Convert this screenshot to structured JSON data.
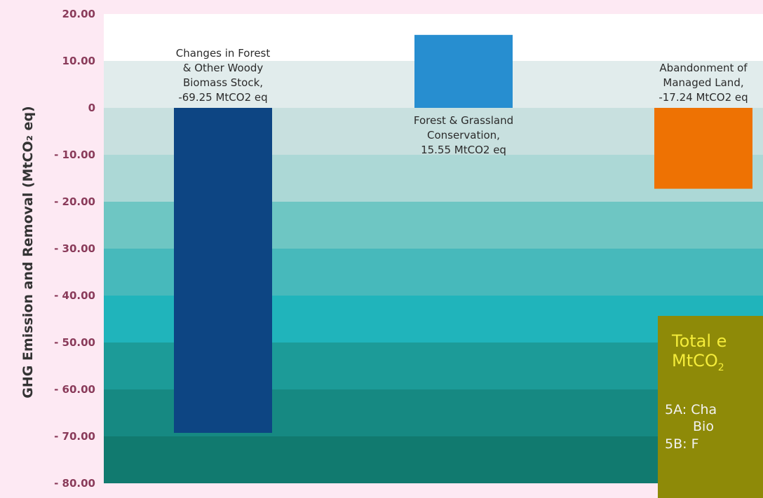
{
  "chart_data": {
    "type": "bar",
    "ylabel": "GHG Emission and Removal (MtCO₂ eq)",
    "ylim": [
      -80,
      20
    ],
    "yticks": [
      "20.00",
      "10.00",
      "0",
      "- 10.00",
      "- 20.00",
      "- 30.00",
      "- 40.00",
      "- 50.00",
      "- 60.00",
      "- 70.00",
      "- 80.00"
    ],
    "bars": [
      {
        "name": "Changes in Forest & Other Woody Biomass Stock",
        "value": -69.25,
        "color": "#0d4583",
        "label_lines": [
          "Changes in Forest",
          "& Other Woody",
          "Biomass Stock,",
          "-69.25 MtCO2 eq"
        ]
      },
      {
        "name": "Forest & Grassland Conservation",
        "value": 15.55,
        "color": "#278ed0",
        "label_lines": [
          "Forest & Grassland",
          "Conservation,",
          "15.55 MtCO2 eq"
        ]
      },
      {
        "name": "Abandonment of Managed Land",
        "value": -17.24,
        "color": "#ee7203",
        "label_lines": [
          "Abandonment of",
          "Managed Land,",
          "-17.24 MtCO2 eq"
        ]
      }
    ],
    "background_bands": [
      "#ffffff",
      "#e1ecec",
      "#c8e0df",
      "#acd8d6",
      "#6ec6c3",
      "#47b9bb",
      "#20b4bb",
      "#1c9b98",
      "#168982",
      "#117a6f"
    ]
  },
  "info_box": {
    "title_line1": "Total e",
    "title_line2_prefix": "MtCO",
    "title_line2_sub": "2",
    "line1": "5A: Cha",
    "line2": "Bio",
    "line3": "5B: F"
  }
}
